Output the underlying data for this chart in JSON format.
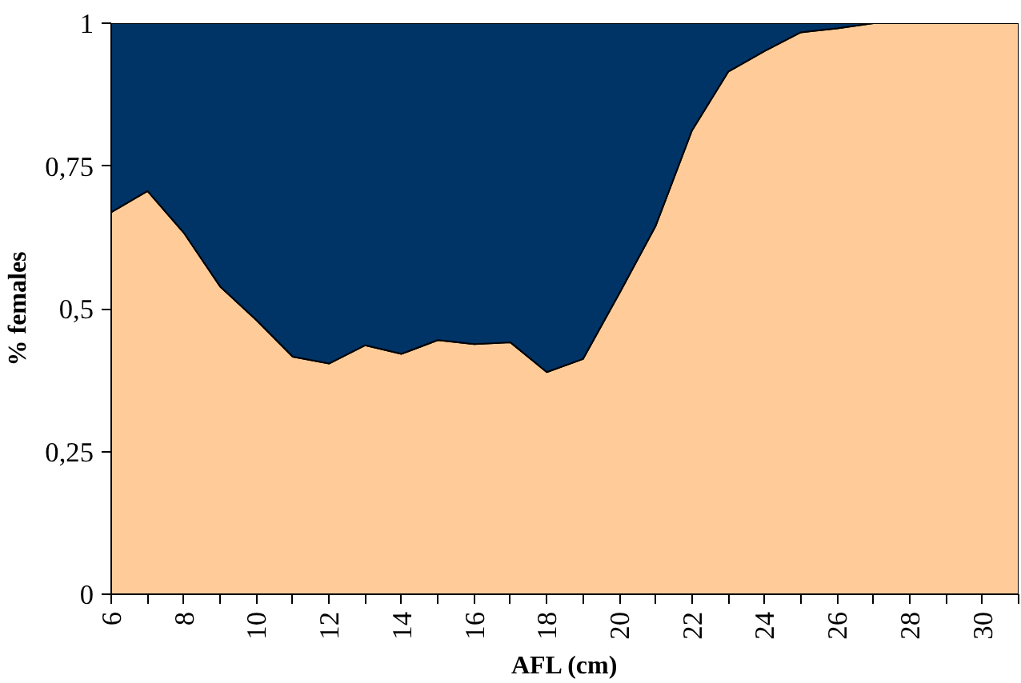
{
  "chart_data": {
    "type": "area",
    "stacked": true,
    "xlabel": "AFL (cm)",
    "ylabel": "% females",
    "x": [
      6,
      7,
      8,
      9,
      10,
      11,
      12,
      13,
      14,
      15,
      16,
      17,
      18,
      19,
      20,
      21,
      22,
      23,
      24,
      25,
      26,
      27,
      28,
      29,
      30,
      31
    ],
    "series": [
      {
        "color": "#ffcc99",
        "values": [
          0.669,
          0.706,
          0.633,
          0.539,
          0.48,
          0.416,
          0.404,
          0.436,
          0.421,
          0.445,
          0.438,
          0.441,
          0.389,
          0.412,
          0.527,
          0.645,
          0.812,
          0.915,
          0.951,
          0.984,
          0.991,
          1,
          1,
          1,
          1,
          1
        ]
      },
      {
        "color": "#003366",
        "values": [
          0.331,
          0.294,
          0.367,
          0.461,
          0.52,
          0.584,
          0.596,
          0.564,
          0.579,
          0.555,
          0.562,
          0.559,
          0.611,
          0.588,
          0.473,
          0.355,
          0.188,
          0.085,
          0.049,
          0.016,
          0.009,
          0,
          0,
          0,
          0,
          0
        ]
      }
    ],
    "xlim": [
      6,
      31
    ],
    "xticks": [
      6,
      {
        "value": 7,
        "label": null
      },
      8,
      {
        "value": 9,
        "label": null
      },
      10,
      {
        "value": 11,
        "label": null
      },
      12,
      {
        "value": 13,
        "label": null
      },
      14,
      {
        "value": 15,
        "label": null
      },
      16,
      {
        "value": 17,
        "label": null
      },
      18,
      {
        "value": 19,
        "label": null
      },
      20,
      {
        "value": 21,
        "label": null
      },
      22,
      {
        "value": 23,
        "label": null
      },
      24,
      {
        "value": 25,
        "label": null
      },
      26,
      {
        "value": 27,
        "label": null
      },
      28,
      {
        "value": 29,
        "label": null
      },
      30,
      {
        "value": 31,
        "label": null
      }
    ],
    "ylim": [
      0,
      1
    ],
    "yticks": [
      0,
      {
        "value": 0.25,
        "label": "0,25"
      },
      {
        "value": 0.5,
        "label": "0,5"
      },
      {
        "value": 0.75,
        "label": "0,75"
      },
      1
    ]
  }
}
